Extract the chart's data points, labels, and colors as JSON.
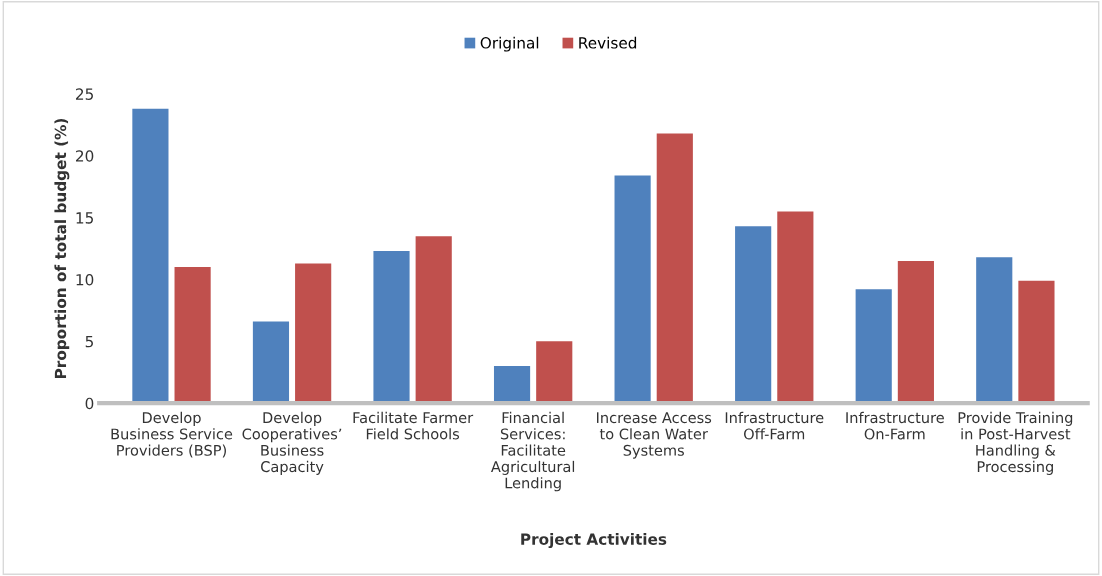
{
  "chart_data": {
    "type": "bar",
    "xlabel": "Project Activities",
    "ylabel": "Proportion of total budget (%)",
    "categories": [
      "Develop Business Service Providers (BSP)",
      "Develop Cooperatives’ Business Capacity",
      "Facilitate Farmer Field Schools",
      "Financial Services: Facilitate Agricultural Lending",
      "Increase Access to Clean Water Systems",
      "Infrastructure Off-Farm",
      "Infrastructure On-Farm",
      "Provide Training in Post-Harvest Handling & Processing"
    ],
    "series": [
      {
        "name": "Original",
        "color": "#4f81bd",
        "values": [
          23.8,
          6.6,
          12.3,
          3.0,
          18.4,
          14.3,
          9.2,
          11.8
        ]
      },
      {
        "name": "Revised",
        "color": "#c0504d",
        "values": [
          11.0,
          11.3,
          13.5,
          5.0,
          21.8,
          15.5,
          11.5,
          9.9
        ]
      }
    ],
    "ylim": [
      0,
      25
    ],
    "yticks": [
      0,
      5,
      10,
      15,
      20,
      25
    ],
    "grid": false,
    "legend": "top"
  }
}
